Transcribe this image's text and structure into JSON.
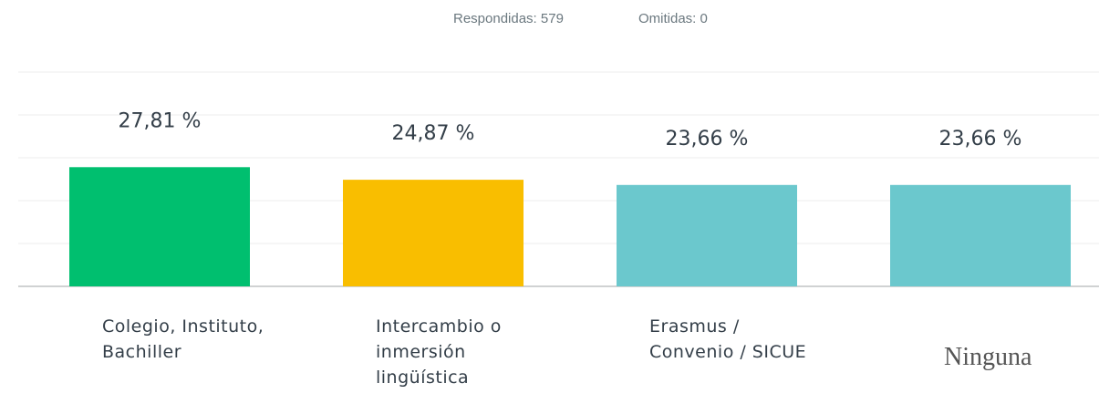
{
  "answered": "Respondidas: 579",
  "skipped": "Omitidas: 0",
  "chart_data": {
    "type": "bar",
    "categories": [
      "Colegio, Instituto, Bachiller",
      "Intercambio o inmersión lingüística",
      "Erasmus / Convenio / SICUE",
      "Ninguna"
    ],
    "values": [
      27.81,
      24.87,
      23.66,
      23.66
    ],
    "value_labels": [
      "27,81 %",
      "24,87 %",
      "23,66 %",
      "23,66 %"
    ],
    "colors": [
      "#00bf6f",
      "#f9be00",
      "#6bc8cd",
      "#6bc8cd"
    ],
    "ylim": [
      0,
      50
    ],
    "yticks": [
      0,
      10,
      20,
      30,
      40,
      50
    ],
    "grid": true
  }
}
